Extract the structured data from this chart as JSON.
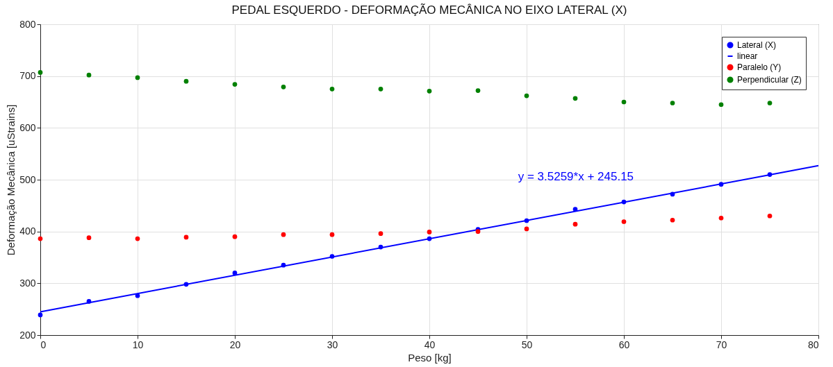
{
  "chart_data": {
    "type": "scatter",
    "title": "PEDAL ESQUERDO - DEFORMAÇÃO MECÂNICA NO EIXO LATERAL (X)",
    "xlabel": "Peso [kg]",
    "ylabel": "Deformação Mecânica [uStrains]",
    "x": [
      0,
      5,
      10,
      15,
      20,
      25,
      30,
      35,
      40,
      45,
      50,
      55,
      60,
      65,
      70,
      75
    ],
    "series": [
      {
        "name": "Lateral (X)",
        "color": "#0000ff",
        "values": [
          239,
          265,
          276,
          298,
          320,
          335,
          352,
          370,
          386,
          404,
          421,
          443,
          457,
          472,
          491,
          510
        ]
      },
      {
        "name": "linear",
        "type": "line",
        "marker": "none",
        "color": "#0000ff",
        "x": [
          0,
          80
        ],
        "values": [
          245,
          527
        ]
      },
      {
        "name": "Paralelo (Y)",
        "color": "#ff0000",
        "values": [
          386,
          388,
          386,
          389,
          390,
          394,
          394,
          396,
          399,
          400,
          405,
          414,
          419,
          422,
          426,
          430
        ]
      },
      {
        "name": "Perpendicular (Z)",
        "color": "#008000",
        "values": [
          707,
          702,
          697,
          690,
          684,
          679,
          675,
          675,
          671,
          672,
          662,
          657,
          650,
          648,
          645,
          648
        ]
      }
    ],
    "xlim": [
      0,
      80
    ],
    "xticks": [
      0,
      10,
      20,
      30,
      40,
      50,
      60,
      70,
      80
    ],
    "ylim": [
      200,
      800
    ],
    "yticks": [
      200,
      300,
      400,
      500,
      600,
      700,
      800
    ],
    "annotations": [
      "y = 3.5259*x + 245.15"
    ],
    "grid": true,
    "legend": "top right",
    "marker": "circle",
    "line_style": "solid"
  }
}
